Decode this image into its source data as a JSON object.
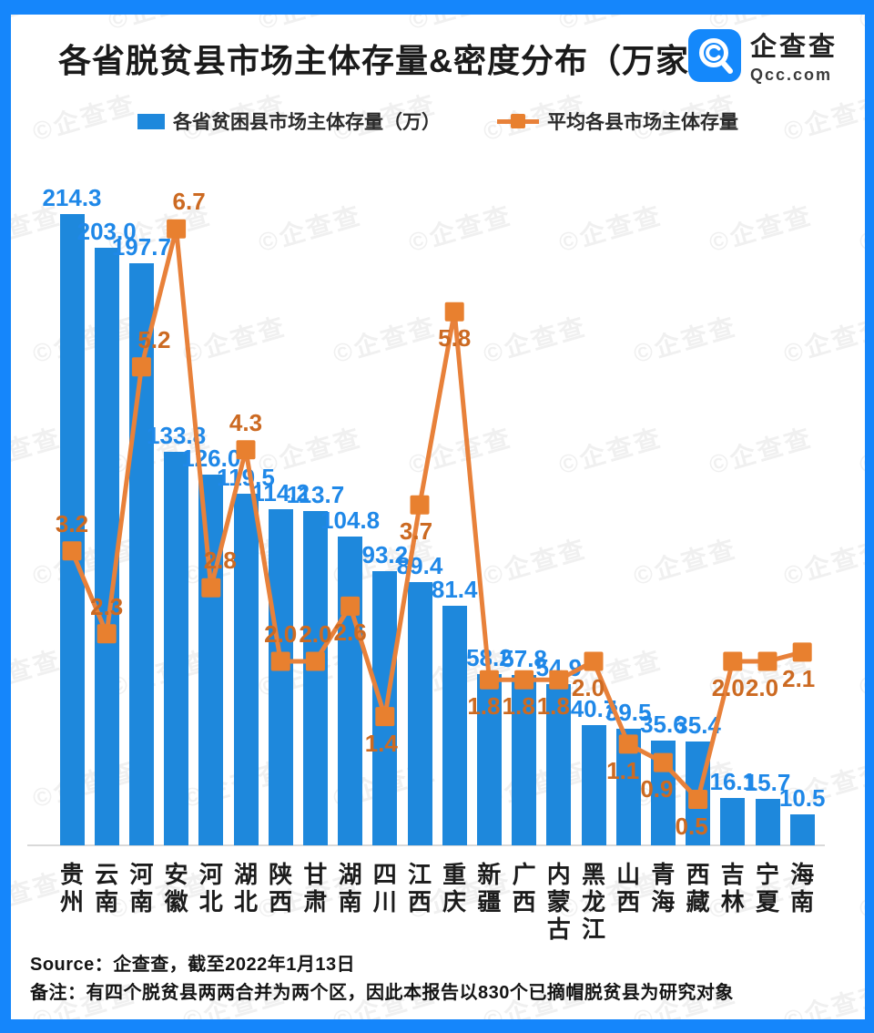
{
  "header": {
    "title": "各省脱贫县市场主体存量&密度分布（万家）",
    "logo_name": "企查查",
    "logo_sub": "Qcc.com"
  },
  "legend": {
    "bars_label": "各省贫困县市场主体存量（万）",
    "line_label": "平均各县市场主体存量"
  },
  "footer": {
    "source": "Source：企查查，截至2022年1月13日",
    "note": "备注：有四个脱贫县两两合并为两个区，因此本报告以830个已摘帽脱贫县为研究对象"
  },
  "watermark": {
    "text": "©企查查"
  },
  "colors": {
    "frame": "#1586FB",
    "bar": "#1E88DC",
    "bar_label": "#1F88E8",
    "line": "#E8813A",
    "marker": "#E8802F",
    "line_label": "#CC6A22",
    "axis": "#d9d9d9"
  },
  "chart_data": {
    "type": "combo",
    "title": "各省脱贫县市场主体存量&密度分布（万家）",
    "categories": [
      "贵州",
      "云南",
      "河南",
      "安徽",
      "河北",
      "湖北",
      "陕西",
      "甘肃",
      "湖南",
      "四川",
      "江西",
      "重庆",
      "新疆",
      "广西",
      "内蒙古",
      "黑龙江",
      "山西",
      "青海",
      "西藏",
      "吉林",
      "宁夏",
      "海南"
    ],
    "series": [
      {
        "name": "各省贫困县市场主体存量（万）",
        "type": "bar",
        "values": [
          214.3,
          203.0,
          197.7,
          133.8,
          126.0,
          119.5,
          114.2,
          113.7,
          104.8,
          93.2,
          89.4,
          81.4,
          58.2,
          57.8,
          54.9,
          40.7,
          39.5,
          35.6,
          35.4,
          16.1,
          15.7,
          10.5
        ]
      },
      {
        "name": "平均各县市场主体存量",
        "type": "line",
        "values": [
          3.2,
          2.3,
          5.2,
          6.7,
          2.8,
          4.3,
          2.0,
          2.0,
          2.6,
          1.4,
          3.7,
          5.8,
          1.8,
          1.8,
          1.8,
          2.0,
          1.1,
          0.9,
          0.5,
          2.0,
          2.0,
          2.1
        ]
      }
    ],
    "value_label_decimals": 1,
    "line_label_positions": [
      "above",
      "above",
      "above",
      "above",
      "above",
      "above",
      "above",
      "above",
      "below",
      "below",
      "below",
      "below",
      "below",
      "below",
      "below",
      "below",
      "below",
      "below",
      "below",
      "below",
      "below",
      "below"
    ],
    "line_label_dx": [
      0,
      0,
      14,
      14,
      10,
      0,
      0,
      0,
      0,
      -4,
      -4,
      0,
      -6,
      -6,
      -6,
      -6,
      -6,
      -7,
      -7,
      -5,
      -6,
      -4
    ],
    "bar_axis_range": [
      0,
      230
    ],
    "line_axis_range": [
      0,
      7
    ],
    "grid": false,
    "legend_position": "top"
  }
}
